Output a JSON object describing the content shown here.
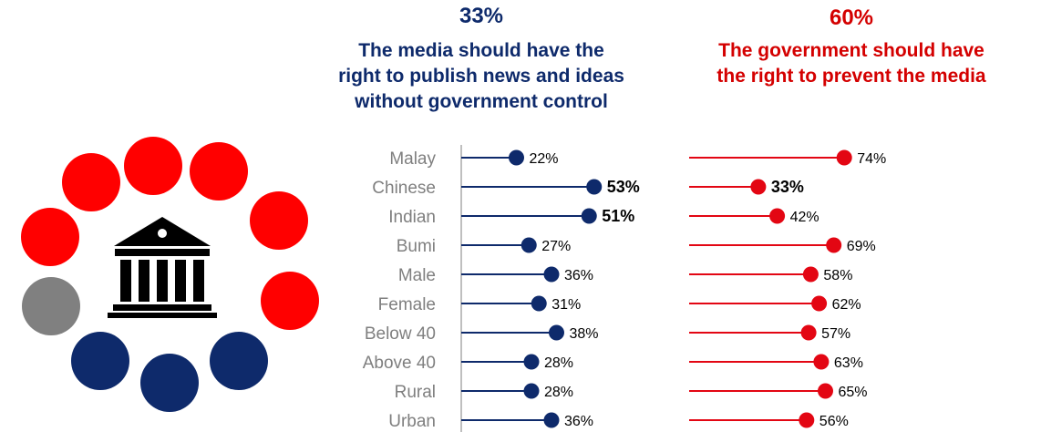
{
  "headers": {
    "left": {
      "percent": "33%",
      "statement": [
        "The media should have the",
        "right to publish news and ideas",
        "without government control"
      ],
      "color": "#0e2a6b"
    },
    "right": {
      "percent": "60%",
      "statement": [
        "The government should have",
        "the right to prevent the media"
      ],
      "color": "#d40000"
    }
  },
  "chart_data": {
    "type": "lollipop",
    "categories": [
      "Malay",
      "Chinese",
      "Indian",
      "Bumi",
      "Male",
      "Female",
      "Below 40",
      "Above 40",
      "Rural",
      "Urban"
    ],
    "series": [
      {
        "name": "The media should have the right to publish news and ideas without government control",
        "values": [
          22,
          53,
          51,
          27,
          36,
          31,
          38,
          28,
          28,
          36
        ],
        "labels": [
          "22%",
          "53%",
          "51%",
          "27%",
          "36%",
          "31%",
          "38%",
          "28%",
          "28%",
          "36%"
        ],
        "highlight": [
          "Chinese",
          "Indian"
        ],
        "color": "#0e2a6b"
      },
      {
        "name": "The government should have the right to prevent the media",
        "values": [
          74,
          33,
          42,
          69,
          58,
          62,
          57,
          63,
          65,
          56
        ],
        "labels": [
          "74%",
          "33%",
          "42%",
          "69%",
          "58%",
          "62%",
          "57%",
          "63%",
          "65%",
          "56%"
        ],
        "highlight": [
          "Chinese"
        ],
        "color": "#e30613"
      }
    ]
  },
  "icon": {
    "name": "government-building-icon",
    "ring_colors": [
      "#ff0000",
      "#ff0000",
      "#ff0000",
      "#ff0000",
      "#ff0000",
      "#ff0000",
      "#0e2a6b",
      "#0e2a6b",
      "#0e2a6b",
      "#808080"
    ]
  }
}
